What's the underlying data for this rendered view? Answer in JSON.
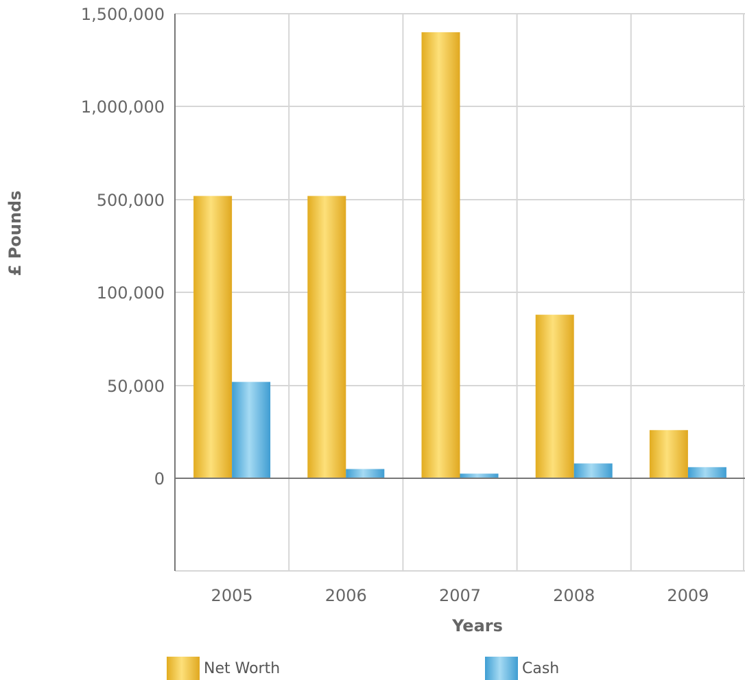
{
  "chart_data": {
    "type": "bar",
    "categories": [
      "2005",
      "2006",
      "2007",
      "2008",
      "2009"
    ],
    "series": [
      {
        "name": "Net Worth",
        "values": [
          520000,
          520000,
          1400000,
          88000,
          26000
        ],
        "color": "#E8B52A"
      },
      {
        "name": "Cash",
        "values": [
          52000,
          5000,
          2500,
          8000,
          6000
        ],
        "color": "#5AADDB"
      }
    ],
    "xlabel": "Years",
    "ylabel": "£ Pounds",
    "y_scale": "piecewise",
    "y_ticks": [
      0,
      50000,
      100000,
      500000,
      1000000,
      1500000
    ],
    "y_tick_labels": [
      "0",
      "50,000",
      "100,000",
      "500,000",
      "1,000,000",
      "1,500,000"
    ],
    "ylim": [
      -50000,
      1500000
    ],
    "grid": true,
    "legend_position": "bottom"
  }
}
